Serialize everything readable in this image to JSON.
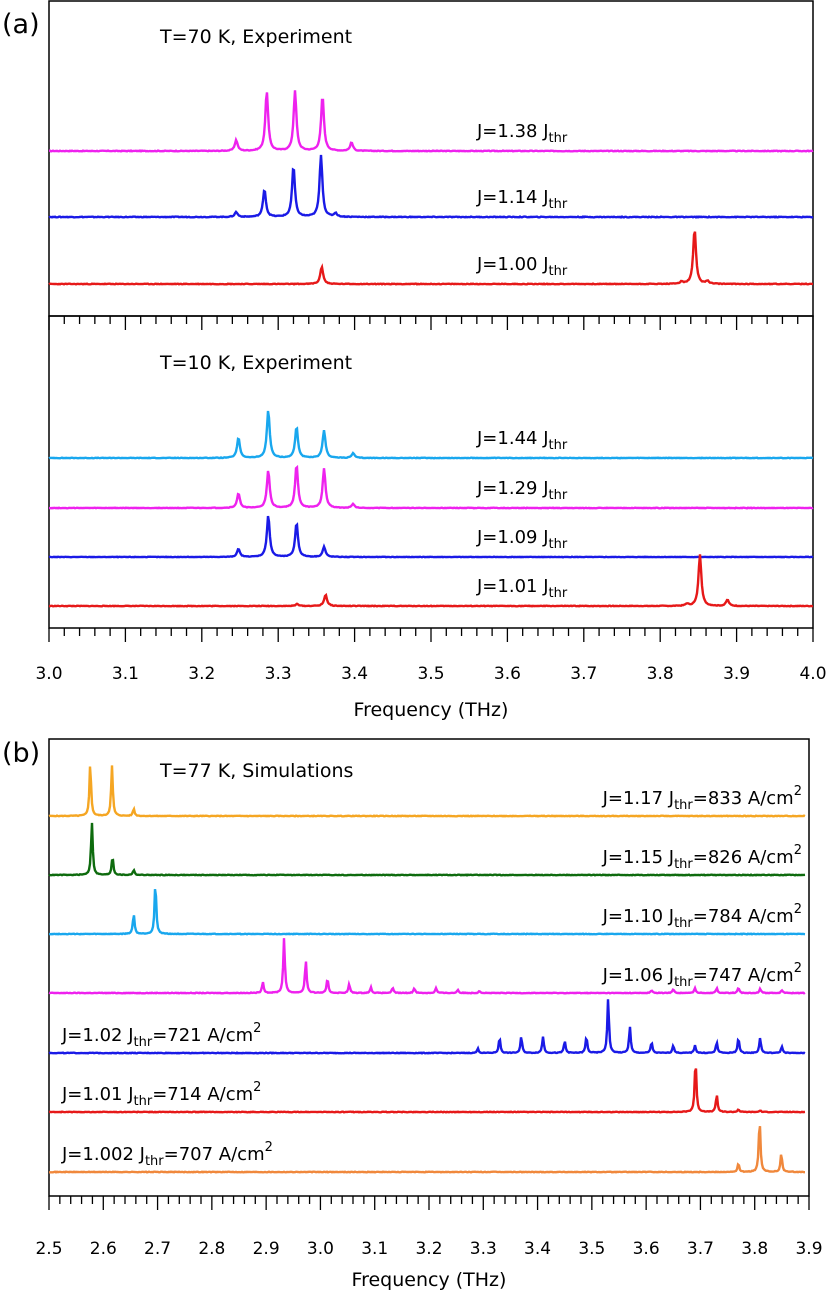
{
  "panels": [
    {
      "tag": "(a)",
      "subpanels": [
        {
          "annotation": "T=70 K, Experiment",
          "traces": [
            {
              "label": "J=1.38 J",
              "sub": "thr",
              "color": "#ee22ee",
              "peaks": [
                [
                  3.245,
                  0.18
                ],
                [
                  3.285,
                  1.0
                ],
                [
                  3.322,
                  1.0
                ],
                [
                  3.358,
                  0.92
                ],
                [
                  3.396,
                  0.14
                ]
              ]
            },
            {
              "label": "J=1.14 J",
              "sub": "thr",
              "color": "#1a1ae6",
              "peaks": [
                [
                  3.245,
                  0.08
                ],
                [
                  3.282,
                  0.45
                ],
                [
                  3.32,
                  0.82
                ],
                [
                  3.356,
                  1.0
                ],
                [
                  3.375,
                  0.06
                ]
              ]
            },
            {
              "label": "J=1.00 J",
              "sub": "thr",
              "color": "#e61919",
              "peaks": [
                [
                  3.357,
                  0.3
                ],
                [
                  3.845,
                  0.95
                ],
                [
                  3.862,
                  0.05
                ],
                [
                  3.828,
                  0.04
                ]
              ]
            }
          ]
        },
        {
          "annotation": "T=10 K, Experiment",
          "traces": [
            {
              "label": "J=1.44 J",
              "sub": "thr",
              "color": "#19a7ee",
              "peaks": [
                [
                  3.248,
                  0.42
                ],
                [
                  3.287,
                  1.0
                ],
                [
                  3.324,
                  0.65
                ],
                [
                  3.36,
                  0.58
                ],
                [
                  3.398,
                  0.1
                ]
              ]
            },
            {
              "label": "J=1.29 J",
              "sub": "thr",
              "color": "#ee22ee",
              "peaks": [
                [
                  3.248,
                  0.3
                ],
                [
                  3.287,
                  0.78
                ],
                [
                  3.324,
                  0.9
                ],
                [
                  3.36,
                  0.82
                ],
                [
                  3.398,
                  0.08
                ]
              ]
            },
            {
              "label": "J=1.09 J",
              "sub": "thr",
              "color": "#1a1ae6",
              "peaks": [
                [
                  3.248,
                  0.18
                ],
                [
                  3.287,
                  0.95
                ],
                [
                  3.324,
                  0.78
                ],
                [
                  3.36,
                  0.23
                ]
              ]
            },
            {
              "label": "J=1.01 J",
              "sub": "thr",
              "color": "#e61919",
              "peaks": [
                [
                  3.325,
                  0.04
                ],
                [
                  3.362,
                  0.22
                ],
                [
                  3.852,
                  1.0
                ],
                [
                  3.888,
                  0.12
                ],
                [
                  3.835,
                  0.04
                ]
              ]
            }
          ]
        }
      ],
      "xaxis": {
        "min": 3.0,
        "max": 4.0,
        "ticks": [
          "3.0",
          "3.1",
          "3.2",
          "3.3",
          "3.4",
          "3.5",
          "3.6",
          "3.7",
          "3.8",
          "3.9",
          "4.0"
        ],
        "label": "Frequency (THz)"
      }
    },
    {
      "tag": "(b)",
      "annotation": "T=77 K, Simulations",
      "traces": [
        {
          "label": "J=1.17 J",
          "sub": "thr",
          "tail": "=833 A/cm",
          "sup": "2",
          "color": "#f5a623",
          "labelSide": "right",
          "peaks": [
            [
              2.576,
              1.0
            ],
            [
              2.616,
              0.95
            ],
            [
              2.656,
              0.14
            ]
          ]
        },
        {
          "label": "J=1.15 J",
          "sub": "thr",
          "tail": "=826 A/cm",
          "sup": "2",
          "color": "#0e6b0e",
          "labelSide": "right",
          "peaks": [
            [
              2.579,
              1.0
            ],
            [
              2.617,
              0.35
            ],
            [
              2.656,
              0.1
            ]
          ]
        },
        {
          "label": "J=1.10 J",
          "sub": "thr",
          "tail": "=784 A/cm",
          "sup": "2",
          "color": "#19a7ee",
          "labelSide": "right",
          "peaks": [
            [
              2.656,
              0.39
            ],
            [
              2.696,
              1.0
            ]
          ]
        },
        {
          "label": "J=1.06 J",
          "sub": "thr",
          "tail": "=747 A/cm",
          "sup": "2",
          "color": "#ee22ee",
          "labelSide": "right",
          "peaks": [
            [
              2.894,
              0.2
            ],
            [
              2.933,
              1.0
            ],
            [
              2.973,
              0.6
            ],
            [
              3.013,
              0.26
            ],
            [
              3.053,
              0.16
            ],
            [
              3.093,
              0.1
            ],
            [
              3.133,
              0.09
            ],
            [
              3.173,
              0.09
            ],
            [
              3.213,
              0.09
            ],
            [
              3.253,
              0.06
            ],
            [
              3.293,
              0.04
            ],
            [
              3.61,
              0.05
            ],
            [
              3.65,
              0.07
            ],
            [
              3.69,
              0.09
            ],
            [
              3.73,
              0.09
            ],
            [
              3.77,
              0.09
            ],
            [
              3.81,
              0.08
            ],
            [
              3.85,
              0.05
            ]
          ]
        },
        {
          "label": "J=1.02 J",
          "sub": "thr",
          "tail": "=721 A/cm",
          "sup": "2",
          "color": "#1a1ae6",
          "labelSide": "left",
          "peaks": [
            [
              3.29,
              0.08
            ],
            [
              3.33,
              0.28
            ],
            [
              3.37,
              0.3
            ],
            [
              3.41,
              0.3
            ],
            [
              3.45,
              0.22
            ],
            [
              3.49,
              0.3
            ],
            [
              3.53,
              1.0
            ],
            [
              3.57,
              0.48
            ],
            [
              3.61,
              0.2
            ],
            [
              3.65,
              0.14
            ],
            [
              3.69,
              0.14
            ],
            [
              3.73,
              0.2
            ],
            [
              3.77,
              0.28
            ],
            [
              3.81,
              0.28
            ],
            [
              3.85,
              0.12
            ]
          ]
        },
        {
          "label": "J=1.01 J",
          "sub": "thr",
          "tail": "=714 A/cm",
          "sup": "2",
          "color": "#e61919",
          "labelSide": "left",
          "peaks": [
            [
              3.691,
              1.0
            ],
            [
              3.73,
              0.33
            ],
            [
              3.77,
              0.05
            ],
            [
              3.81,
              0.03
            ]
          ]
        },
        {
          "label": "J=1.002 J",
          "sub": "thr",
          "tail": "=707 A/cm",
          "sup": "2",
          "color": "#f0883c",
          "labelSide": "left",
          "peaks": [
            [
              3.77,
              0.16
            ],
            [
              3.809,
              1.0
            ],
            [
              3.849,
              0.35
            ]
          ]
        }
      ],
      "xaxis": {
        "min": 2.5,
        "max": 3.9,
        "ticks": [
          "2.5",
          "2.6",
          "2.7",
          "2.8",
          "2.9",
          "3.0",
          "3.1",
          "3.2",
          "3.3",
          "3.4",
          "3.5",
          "3.6",
          "3.7",
          "3.8",
          "3.9"
        ],
        "label": "Frequency (THz)"
      }
    }
  ]
}
